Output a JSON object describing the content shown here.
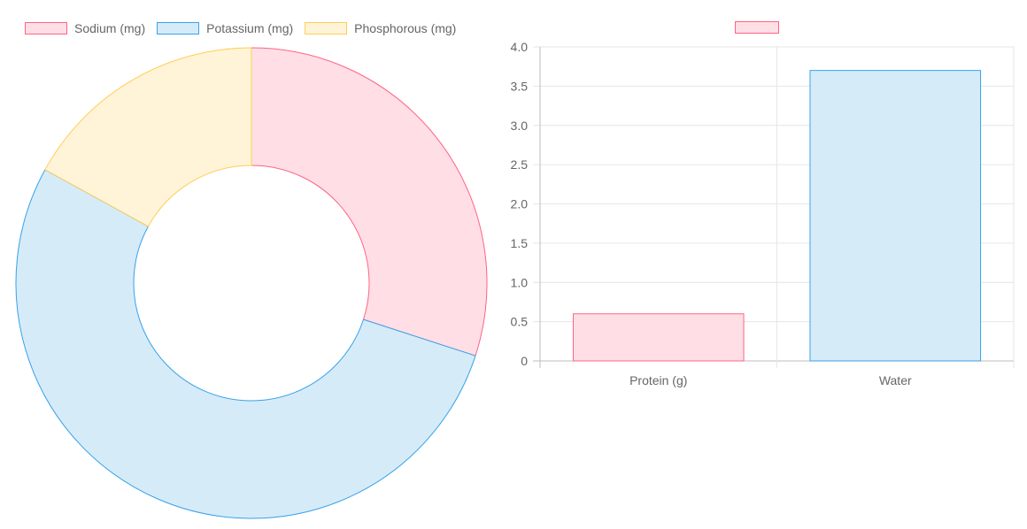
{
  "chart_data": [
    {
      "type": "doughnut",
      "legend_position": "top",
      "series": [
        {
          "label": "Sodium (mg)",
          "value": 30,
          "fill": "#ffdfe5",
          "stroke": "#ff6384"
        },
        {
          "label": "Potassium (mg)",
          "value": 53,
          "fill": "#d6ebf8",
          "stroke": "#36a2eb"
        },
        {
          "label": "Phosphorous (mg)",
          "value": 17,
          "fill": "#fff4d8",
          "stroke": "#ffcd56"
        }
      ]
    },
    {
      "type": "bar",
      "legend_position": "top",
      "legend_label": "",
      "legend_fill": "#ffdfe5",
      "legend_stroke": "#ff6384",
      "categories": [
        "Protein (g)",
        "Water"
      ],
      "values": [
        0.6,
        3.7
      ],
      "bar_fills": [
        "#ffdfe5",
        "#d6ebf8"
      ],
      "bar_strokes": [
        "#ff6384",
        "#36a2eb"
      ],
      "ylim": [
        0,
        4.0
      ],
      "yticks": [
        "0",
        "0.5",
        "1.0",
        "1.5",
        "2.0",
        "2.5",
        "3.0",
        "3.5",
        "4.0"
      ],
      "grid": true
    }
  ]
}
